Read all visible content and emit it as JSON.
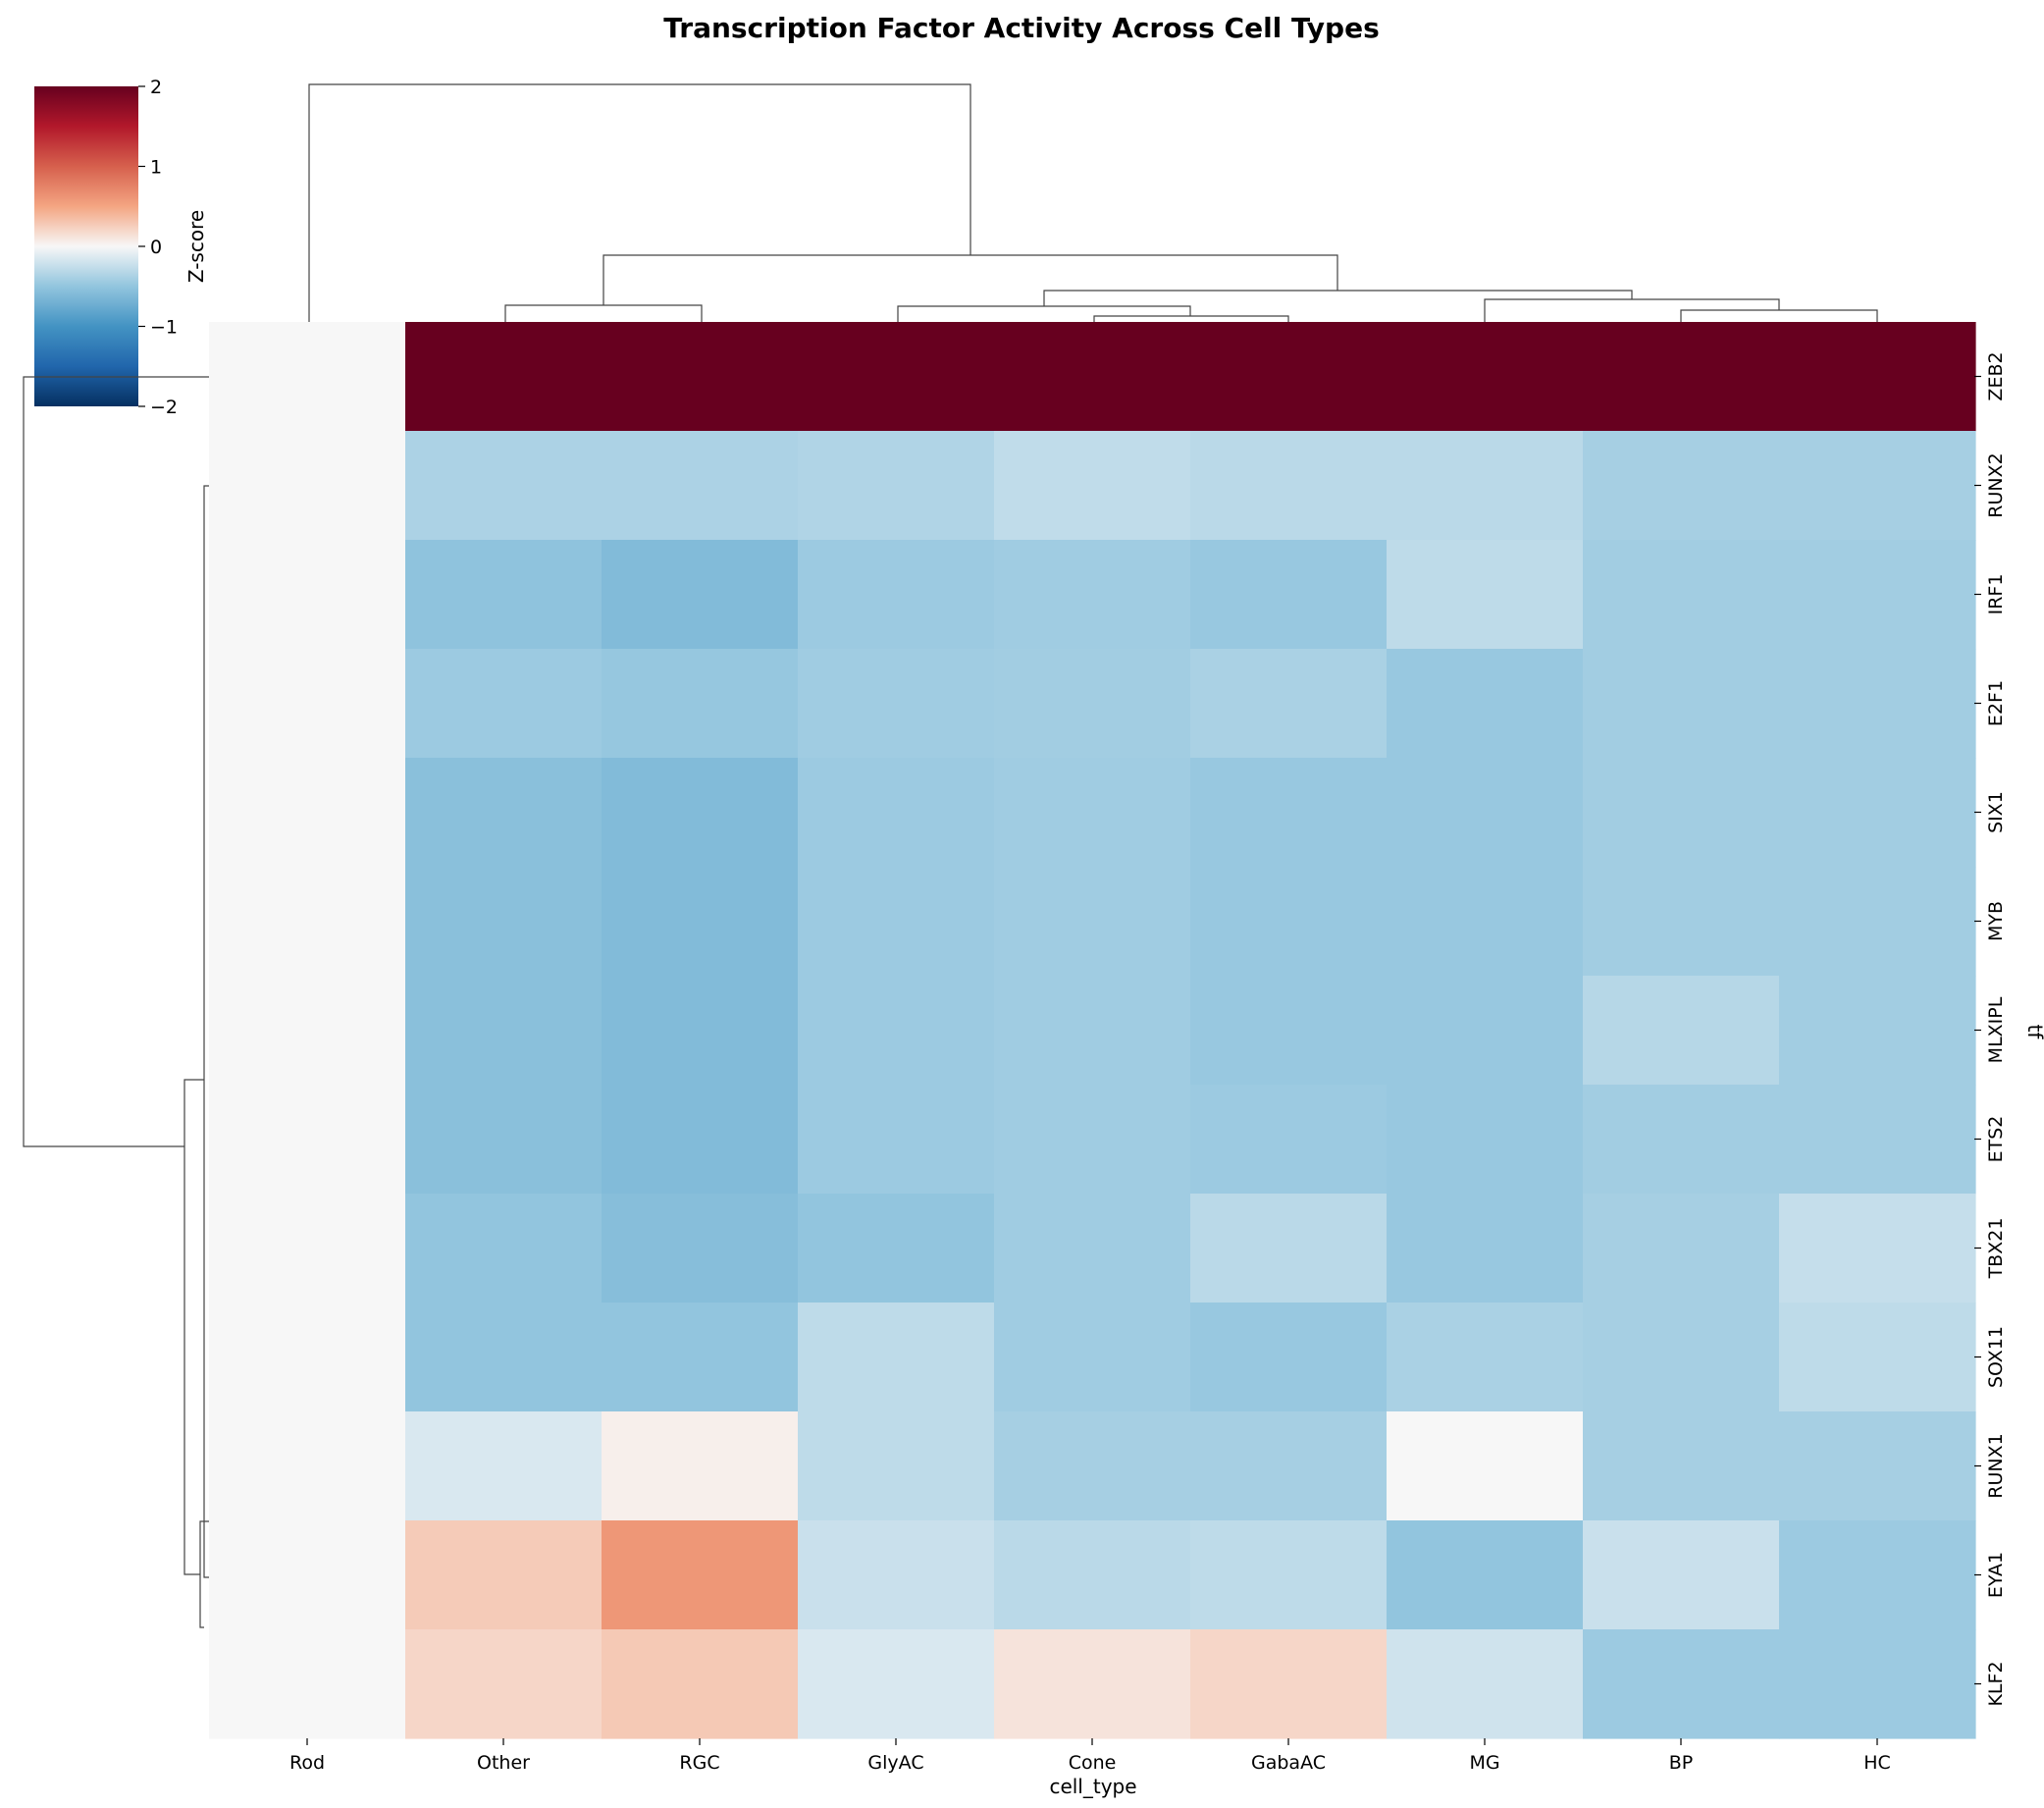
{
  "chart_data": {
    "type": "heatmap",
    "title": "Transcription Factor Activity Across Cell Types",
    "xlabel": "cell_type",
    "ylabel": "tf",
    "x": [
      "Rod",
      "Other",
      "RGC",
      "GlyAC",
      "Cone",
      "GabaAC",
      "MG",
      "BP",
      "HC"
    ],
    "y": [
      "ZEB2",
      "RUNX2",
      "IRF1",
      "E2F1",
      "SIX1",
      "MYB",
      "MLXIPL",
      "ETS2",
      "TBX21",
      "SOX11",
      "RUNX1",
      "EYA1",
      "KLF2"
    ],
    "values": [
      [
        0.0,
        2.6,
        2.6,
        2.6,
        2.6,
        2.6,
        2.6,
        2.6,
        2.6
      ],
      [
        0.0,
        -0.37,
        -0.37,
        -0.35,
        -0.27,
        -0.3,
        -0.3,
        -0.4,
        -0.4
      ],
      [
        0.0,
        -0.52,
        -0.6,
        -0.45,
        -0.43,
        -0.47,
        -0.28,
        -0.42,
        -0.42
      ],
      [
        0.0,
        -0.45,
        -0.48,
        -0.43,
        -0.42,
        -0.38,
        -0.47,
        -0.42,
        -0.42
      ],
      [
        0.0,
        -0.55,
        -0.6,
        -0.45,
        -0.43,
        -0.47,
        -0.47,
        -0.42,
        -0.42
      ],
      [
        0.0,
        -0.55,
        -0.6,
        -0.45,
        -0.43,
        -0.47,
        -0.47,
        -0.42,
        -0.42
      ],
      [
        0.0,
        -0.55,
        -0.6,
        -0.45,
        -0.43,
        -0.47,
        -0.47,
        -0.32,
        -0.42
      ],
      [
        0.0,
        -0.55,
        -0.6,
        -0.45,
        -0.43,
        -0.45,
        -0.47,
        -0.42,
        -0.42
      ],
      [
        0.0,
        -0.5,
        -0.57,
        -0.5,
        -0.43,
        -0.3,
        -0.47,
        -0.4,
        -0.25
      ],
      [
        0.0,
        -0.5,
        -0.5,
        -0.28,
        -0.43,
        -0.47,
        -0.38,
        -0.4,
        -0.28
      ],
      [
        0.0,
        -0.15,
        0.05,
        -0.28,
        -0.4,
        -0.4,
        0.0,
        -0.4,
        -0.4
      ],
      [
        0.0,
        0.27,
        0.6,
        -0.23,
        -0.3,
        -0.28,
        -0.5,
        -0.23,
        -0.45
      ],
      [
        0.0,
        0.2,
        0.28,
        -0.15,
        0.12,
        0.2,
        -0.2,
        -0.45,
        -0.45
      ]
    ],
    "colorbar": {
      "label": "Z-score",
      "range": [
        -2,
        2
      ],
      "ticks": [
        2,
        1,
        0,
        -1,
        -2
      ],
      "colormap": "RdBu_r"
    },
    "dendrograms": {
      "columns": true,
      "rows": true
    }
  }
}
